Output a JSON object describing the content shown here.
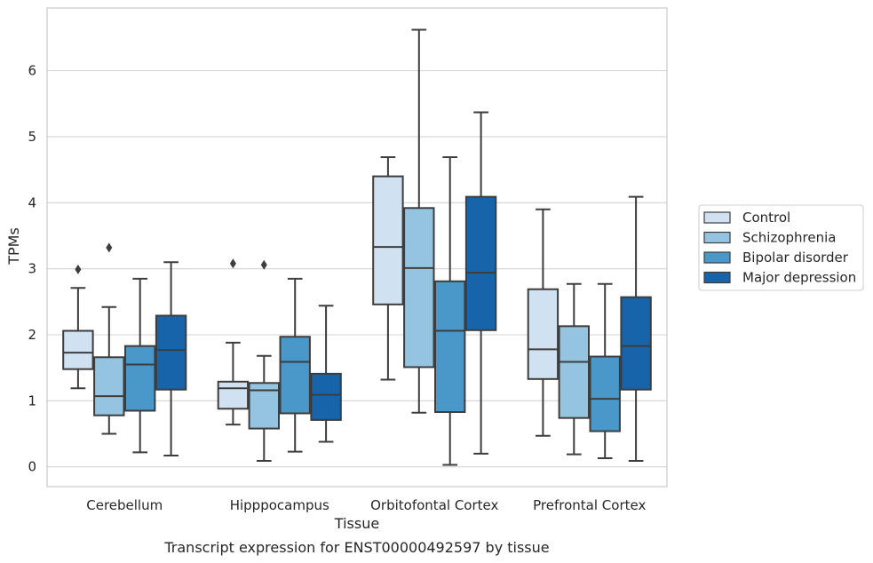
{
  "chart_data": {
    "type": "box",
    "title": "",
    "xlabel": "Tissue",
    "ylabel": "TPMs",
    "caption": "Transcript expression for ENST00000492597 by tissue",
    "categories": [
      "Cerebellum",
      "Hipppocampus",
      "Orbitofontal Cortex",
      "Prefrontal Cortex"
    ],
    "ylim": [
      -0.3,
      6.95
    ],
    "yticks": [
      0,
      1,
      2,
      3,
      4,
      5,
      6
    ],
    "grid": true,
    "legend_position": "right",
    "series": [
      {
        "name": "Control",
        "color": "#d0e1f2",
        "boxes": [
          {
            "whislo": 1.19,
            "q1": 1.48,
            "median": 1.73,
            "q3": 2.06,
            "whishi": 2.71,
            "fliers": [
              2.99
            ]
          },
          {
            "whislo": 0.64,
            "q1": 0.88,
            "median": 1.19,
            "q3": 1.29,
            "whishi": 1.88,
            "fliers": [
              3.08
            ]
          },
          {
            "whislo": 1.32,
            "q1": 2.46,
            "median": 3.33,
            "q3": 4.4,
            "whishi": 4.69,
            "fliers": []
          },
          {
            "whislo": 0.47,
            "q1": 1.33,
            "median": 1.78,
            "q3": 2.69,
            "whishi": 3.9,
            "fliers": []
          }
        ]
      },
      {
        "name": "Schizophrenia",
        "color": "#94c4df",
        "boxes": [
          {
            "whislo": 0.5,
            "q1": 0.78,
            "median": 1.07,
            "q3": 1.66,
            "whishi": 2.42,
            "fliers": [
              3.32
            ]
          },
          {
            "whislo": 0.09,
            "q1": 0.58,
            "median": 1.16,
            "q3": 1.27,
            "whishi": 1.68,
            "fliers": [
              3.06
            ]
          },
          {
            "whislo": 0.82,
            "q1": 1.51,
            "median": 3.01,
            "q3": 3.92,
            "whishi": 6.62,
            "fliers": []
          },
          {
            "whislo": 0.19,
            "q1": 0.74,
            "median": 1.59,
            "q3": 2.13,
            "whishi": 2.77,
            "fliers": []
          }
        ]
      },
      {
        "name": "Bipolar disorder",
        "color": "#4a98c9",
        "boxes": [
          {
            "whislo": 0.22,
            "q1": 0.85,
            "median": 1.55,
            "q3": 1.83,
            "whishi": 2.85,
            "fliers": []
          },
          {
            "whislo": 0.23,
            "q1": 0.81,
            "median": 1.59,
            "q3": 1.97,
            "whishi": 2.85,
            "fliers": []
          },
          {
            "whislo": 0.03,
            "q1": 0.83,
            "median": 2.06,
            "q3": 2.81,
            "whishi": 4.69,
            "fliers": []
          },
          {
            "whislo": 0.13,
            "q1": 0.54,
            "median": 1.03,
            "q3": 1.67,
            "whishi": 2.77,
            "fliers": []
          }
        ]
      },
      {
        "name": "Major depression",
        "color": "#1764ab",
        "boxes": [
          {
            "whislo": 0.17,
            "q1": 1.17,
            "median": 1.77,
            "q3": 2.29,
            "whishi": 3.1,
            "fliers": []
          },
          {
            "whislo": 0.38,
            "q1": 0.71,
            "median": 1.09,
            "q3": 1.41,
            "whishi": 2.44,
            "fliers": []
          },
          {
            "whislo": 0.2,
            "q1": 2.07,
            "median": 2.94,
            "q3": 4.09,
            "whishi": 5.37,
            "fliers": []
          },
          {
            "whislo": 0.09,
            "q1": 1.17,
            "median": 1.83,
            "q3": 2.57,
            "whishi": 4.09,
            "fliers": []
          }
        ]
      }
    ]
  }
}
